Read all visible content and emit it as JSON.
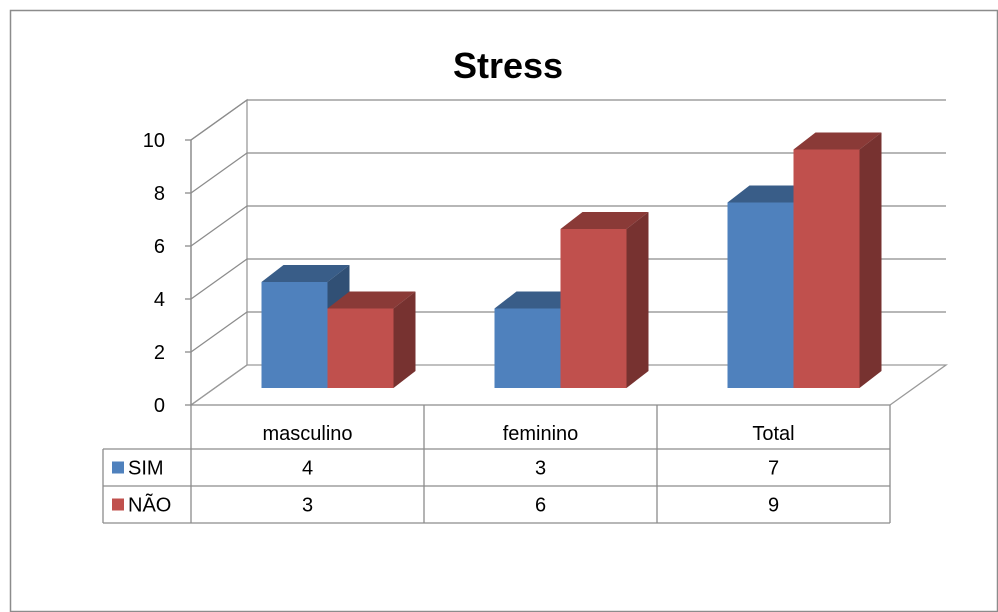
{
  "chart_data": {
    "type": "bar",
    "title": "Stress",
    "categories": [
      "masculino",
      "feminino",
      "Total"
    ],
    "series": [
      {
        "name": "SIM",
        "values": [
          4,
          3,
          7
        ],
        "color": "#4F81BD"
      },
      {
        "name": "NÃO",
        "values": [
          3,
          6,
          9
        ],
        "color": "#C0504D"
      }
    ],
    "ylim": [
      0,
      10
    ],
    "yticks": [
      0,
      2,
      4,
      6,
      8,
      10
    ],
    "grid": true,
    "legend": "data-table"
  }
}
